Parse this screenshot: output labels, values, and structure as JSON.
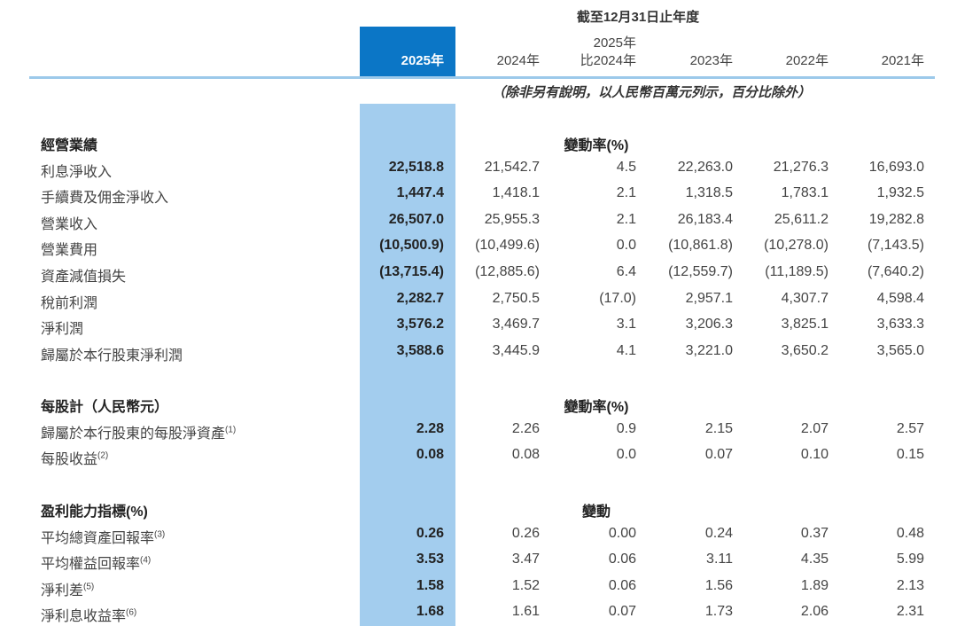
{
  "header": {
    "period": "截至12月31日止年度",
    "years": [
      "2025年",
      "2024年",
      "2025年|比2024年",
      "2023年",
      "2022年",
      "2021年"
    ],
    "note": "（除非另有說明，以人民幣百萬元列示，百分比除外）"
  },
  "sections": [
    {
      "title": "經營業績",
      "change_label": "變動率(%)",
      "rows": [
        {
          "label": "利息淨收入",
          "note": "",
          "values": [
            "22,518.8",
            "21,542.7",
            "4.5",
            "22,263.0",
            "21,276.3",
            "16,693.0"
          ]
        },
        {
          "label": "手續費及佣金淨收入",
          "note": "",
          "values": [
            "1,447.4",
            "1,418.1",
            "2.1",
            "1,318.5",
            "1,783.1",
            "1,932.5"
          ]
        },
        {
          "label": "營業收入",
          "note": "",
          "values": [
            "26,507.0",
            "25,955.3",
            "2.1",
            "26,183.4",
            "25,611.2",
            "19,282.8"
          ]
        },
        {
          "label": "營業費用",
          "note": "",
          "values": [
            "(10,500.9)",
            "(10,499.6)",
            "0.0",
            "(10,861.8)",
            "(10,278.0)",
            "(7,143.5)"
          ]
        },
        {
          "label": "資產減值損失",
          "note": "",
          "values": [
            "(13,715.4)",
            "(12,885.6)",
            "6.4",
            "(12,559.7)",
            "(11,189.5)",
            "(7,640.2)"
          ]
        },
        {
          "label": "稅前利潤",
          "note": "",
          "values": [
            "2,282.7",
            "2,750.5",
            "(17.0)",
            "2,957.1",
            "4,307.7",
            "4,598.4"
          ]
        },
        {
          "label": "淨利潤",
          "note": "",
          "values": [
            "3,576.2",
            "3,469.7",
            "3.1",
            "3,206.3",
            "3,825.1",
            "3,633.3"
          ]
        },
        {
          "label": "歸屬於本行股東淨利潤",
          "note": "",
          "values": [
            "3,588.6",
            "3,445.9",
            "4.1",
            "3,221.0",
            "3,650.2",
            "3,565.0"
          ]
        }
      ]
    },
    {
      "title": "每股計（人民幣元）",
      "change_label": "變動率(%)",
      "rows": [
        {
          "label": "歸屬於本行股東的每股淨資產",
          "note": "(1)",
          "values": [
            "2.28",
            "2.26",
            "0.9",
            "2.15",
            "2.07",
            "2.57"
          ]
        },
        {
          "label": "每股收益",
          "note": "(2)",
          "values": [
            "0.08",
            "0.08",
            "0.0",
            "0.07",
            "0.10",
            "0.15"
          ]
        }
      ]
    },
    {
      "title": "盈利能力指標(%)",
      "change_label": "變動",
      "rows": [
        {
          "label": "平均總資產回報率",
          "note": "(3)",
          "values": [
            "0.26",
            "0.26",
            "0.00",
            "0.24",
            "0.37",
            "0.48"
          ]
        },
        {
          "label": "平均權益回報率",
          "note": "(4)",
          "values": [
            "3.53",
            "3.47",
            "0.06",
            "3.11",
            "4.35",
            "5.99"
          ]
        },
        {
          "label": "淨利差",
          "note": "(5)",
          "values": [
            "1.58",
            "1.52",
            "0.06",
            "1.56",
            "1.89",
            "2.13"
          ]
        },
        {
          "label": "淨利息收益率",
          "note": "(6)",
          "values": [
            "1.68",
            "1.61",
            "0.07",
            "1.73",
            "2.06",
            "2.31"
          ]
        }
      ]
    }
  ]
}
